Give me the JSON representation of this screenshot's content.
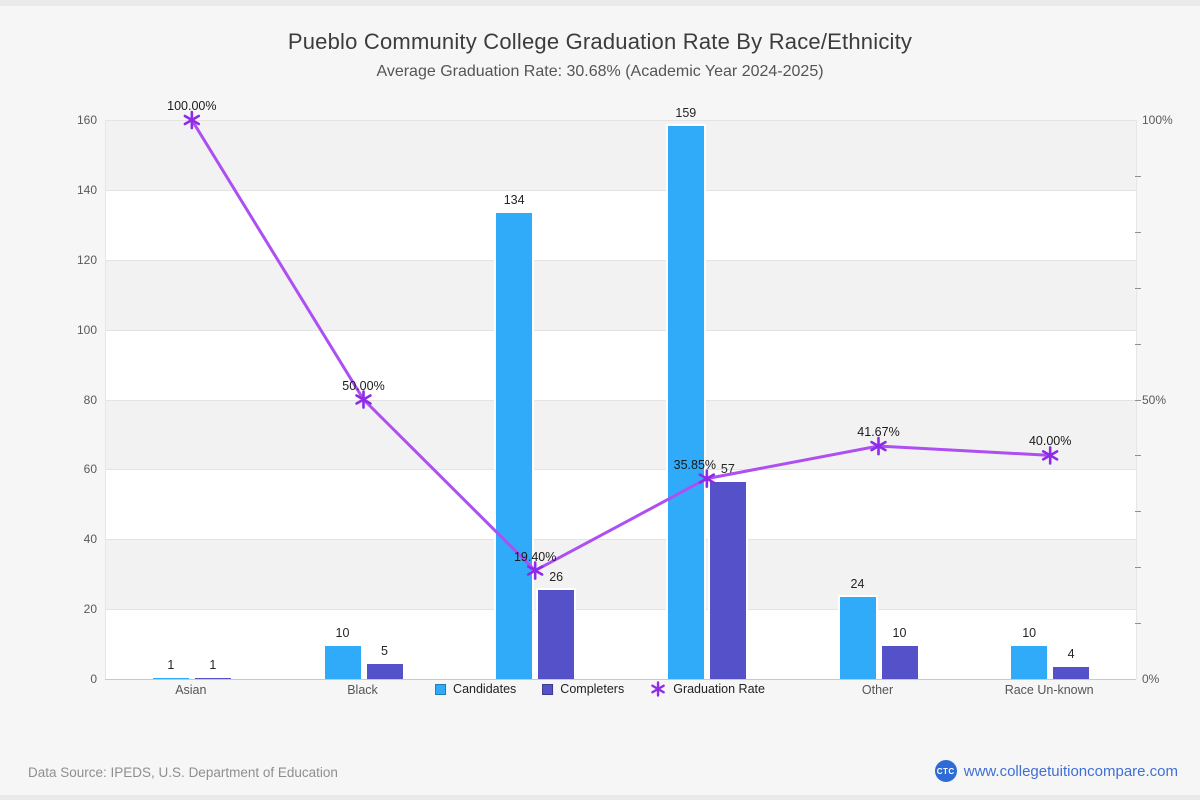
{
  "header": {
    "title": "Pueblo Community College Graduation Rate By Race/Ethnicity",
    "subtitle": "Average Graduation Rate: 30.68% (Academic Year 2024-2025)"
  },
  "chart_data": {
    "type": "bar+line",
    "categories": [
      "Asian",
      "Black",
      "",
      "",
      "Other",
      "Race Un-known"
    ],
    "series": [
      {
        "name": "Candidates",
        "type": "bar",
        "color": "#2fabfa",
        "values": [
          1,
          10,
          134,
          159,
          24,
          10
        ]
      },
      {
        "name": "Completers",
        "type": "bar",
        "color": "#5551c8",
        "values": [
          1,
          5,
          26,
          57,
          10,
          4
        ]
      },
      {
        "name": "Graduation Rate",
        "type": "line",
        "color": "#ad4ff2",
        "marker_color": "#8f2be8",
        "values_pct": [
          100.0,
          50.0,
          19.4,
          35.85,
          41.67,
          40.0
        ],
        "point_labels": [
          "100.00%",
          "50.00%",
          "19.40%",
          "35.85%",
          "41.67%",
          "40.00%"
        ],
        "point_label_dx": [
          0,
          0,
          0,
          -12,
          0,
          0
        ]
      }
    ],
    "left_axis": {
      "min": 0,
      "max": 160,
      "step": 20,
      "ticks": [
        "0",
        "20",
        "40",
        "60",
        "80",
        "100",
        "120",
        "140",
        "160"
      ]
    },
    "right_axis": {
      "labels": [
        {
          "text": "100%",
          "pct": 100
        },
        {
          "text": "50%",
          "pct": 50
        },
        {
          "text": "0%",
          "pct": 0
        }
      ],
      "minor_tick_step_pct": 10
    },
    "grid": "horizontal-bands",
    "legend_position": "bottom-center"
  },
  "legend": {
    "items": [
      {
        "label": "Candidates",
        "marker": "square",
        "color": "#2fabfa"
      },
      {
        "label": "Completers",
        "marker": "square",
        "color": "#5551c8"
      },
      {
        "label": "Graduation Rate",
        "marker": "asterisk",
        "color": "#8f2be8"
      }
    ]
  },
  "footer": {
    "source": "Data Source: IPEDS, U.S. Department of Education",
    "logo": "CTC",
    "link": "www.collegetuitioncompare.com"
  }
}
